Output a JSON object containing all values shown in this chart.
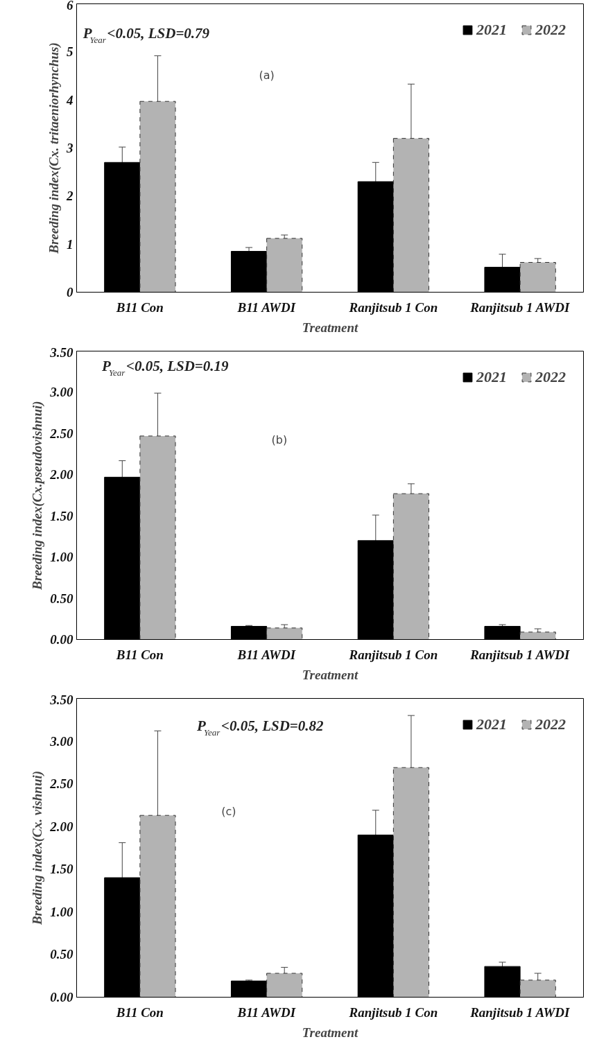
{
  "chart_data": [
    {
      "type": "bar",
      "xlabel": "Treatment",
      "ylabel": "Breeding index(Cx. tritaeniorhynchus)",
      "categories": [
        "B11 Con",
        "B11 AWDI",
        "Ranjitsub 1 Con",
        "Ranjitsub 1 AWDI"
      ],
      "ylim": [
        0,
        6
      ],
      "yticks": [
        0,
        1,
        2,
        3,
        4,
        5,
        6
      ],
      "legend": "top right",
      "grid": false,
      "series": [
        {
          "name": "2021",
          "color": "#000000",
          "line_style": "solid",
          "values": [
            2.7,
            0.85,
            2.3,
            0.52
          ],
          "errors": [
            0.32,
            0.08,
            0.4,
            0.27
          ]
        },
        {
          "name": "2022",
          "color": "#b3b3b3",
          "line_style": "dashed",
          "values": [
            3.97,
            1.12,
            3.2,
            0.62
          ],
          "errors": [
            0.95,
            0.07,
            1.13,
            0.08
          ]
        }
      ],
      "annotations": [
        "P$_{Year}$<0.05, LSD=0.79",
        "(a)"
      ]
    },
    {
      "type": "bar",
      "xlabel": "Treatment",
      "ylabel": "Breeding index(Cx.pseudovishnui)",
      "categories": [
        "B11 Con",
        "B11 AWDI",
        "Ranjitsub 1 Con",
        "Ranjitsub 1 AWDI"
      ],
      "ylim": [
        0,
        3.5
      ],
      "yticks": [
        {
          "value": 0,
          "label": "0.00"
        },
        {
          "value": 0.5,
          "label": "0.50"
        },
        {
          "value": 1,
          "label": "1.00"
        },
        {
          "value": 1.5,
          "label": "1.50"
        },
        {
          "value": 2,
          "label": "2.00"
        },
        {
          "value": 2.5,
          "label": "2.50"
        },
        {
          "value": 3,
          "label": "3.00"
        },
        {
          "value": 3.5,
          "label": "3.50"
        }
      ],
      "legend": "top right",
      "grid": false,
      "series": [
        {
          "name": "2021",
          "color": "#000000",
          "line_style": "solid",
          "values": [
            1.97,
            0.16,
            1.2,
            0.16
          ],
          "errors": [
            0.2,
            0.01,
            0.31,
            0.02
          ]
        },
        {
          "name": "2022",
          "color": "#b3b3b3",
          "line_style": "dashed",
          "values": [
            2.47,
            0.14,
            1.77,
            0.09
          ],
          "errors": [
            0.52,
            0.04,
            0.12,
            0.04
          ]
        }
      ],
      "annotations": [
        "P$_{Year}$<0.05, LSD=0.19",
        "(b)"
      ]
    },
    {
      "type": "bar",
      "xlabel": "Treatment",
      "ylabel": "Breeding index(Cx. vishnui)",
      "categories": [
        "B11 Con",
        "B11 AWDI",
        "Ranjitsub 1 Con",
        "Ranjitsub 1 AWDI"
      ],
      "ylim": [
        0,
        3.5
      ],
      "yticks": [
        {
          "value": 0,
          "label": "0.00"
        },
        {
          "value": 0.5,
          "label": "0.50"
        },
        {
          "value": 1,
          "label": "1.00"
        },
        {
          "value": 1.5,
          "label": "1.50"
        },
        {
          "value": 2,
          "label": "2.00"
        },
        {
          "value": 2.5,
          "label": "2.50"
        },
        {
          "value": 3,
          "label": "3.00"
        },
        {
          "value": 3.5,
          "label": "3.50"
        }
      ],
      "legend": "top right",
      "grid": false,
      "series": [
        {
          "name": "2021",
          "color": "#000000",
          "line_style": "solid",
          "values": [
            1.4,
            0.19,
            1.9,
            0.36
          ],
          "errors": [
            0.41,
            0.01,
            0.29,
            0.05
          ]
        },
        {
          "name": "2022",
          "color": "#b3b3b3",
          "line_style": "dashed",
          "values": [
            2.13,
            0.28,
            2.69,
            0.2
          ],
          "errors": [
            0.99,
            0.07,
            0.61,
            0.08
          ]
        }
      ],
      "annotations": [
        "P$_{Year}$<0.05, LSD=0.82",
        "(c)"
      ]
    }
  ]
}
